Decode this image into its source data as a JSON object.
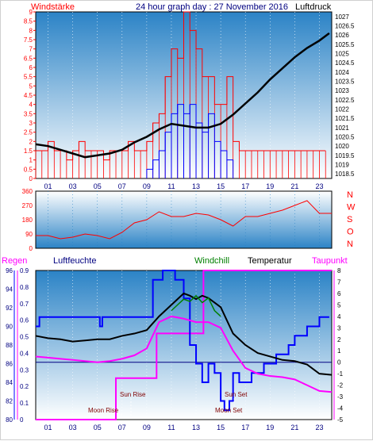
{
  "header": {
    "title": "24 hour graph day : 27 November 2016",
    "left_label": "Windstärke",
    "right_label": "Luftdruck"
  },
  "colors": {
    "red": "#ff0000",
    "black": "#000000",
    "blue": "#0000ff",
    "green": "#008000",
    "magenta": "#ff00ff",
    "dark_red": "#800000",
    "navy": "#000080",
    "bg_top": "#2b83c6",
    "bg_bottom": "#ffffff"
  },
  "x_ticks": [
    "01",
    "03",
    "05",
    "07",
    "09",
    "11",
    "13",
    "15",
    "17",
    "19",
    "21",
    "23"
  ],
  "chart_data": [
    {
      "type": "line",
      "title": "24 hour graph day : 27 November 2016",
      "xlabel": "",
      "ylabel": "Windstärke",
      "y2label": "Luftdruck",
      "x_range_hours": [
        0,
        24
      ],
      "ylim": [
        0,
        9
      ],
      "y2lim": [
        1018.25,
        1027.25
      ],
      "y_ticks": [
        "0",
        "0.5",
        "1",
        "1.5",
        "2",
        "2.5",
        "3",
        "3.5",
        "4",
        "4.5",
        "5",
        "5.5",
        "6",
        "6.5",
        "7",
        "7.5",
        "8",
        "8.5",
        "9"
      ],
      "y2_ticks": [
        "1018.5",
        "1019",
        "1019.5",
        "1020",
        "1020.5",
        "1021",
        "1021.5",
        "1022",
        "1022.5",
        "1023",
        "1023.5",
        "1024",
        "1024.5",
        "1025",
        "1025.5",
        "1026",
        "1026.5",
        "1027"
      ],
      "series": [
        {
          "name": "Luftdruck",
          "axis": "right",
          "color": "#000000",
          "x": [
            0,
            1,
            2,
            3,
            4,
            5,
            6,
            7,
            8,
            9,
            10,
            11,
            12,
            13,
            14,
            15,
            16,
            17,
            18,
            19,
            20,
            21,
            22,
            23,
            23.8
          ],
          "y": [
            1020.1,
            1020.0,
            1019.8,
            1019.6,
            1019.4,
            1019.5,
            1019.6,
            1019.8,
            1020.2,
            1020.5,
            1020.9,
            1021.2,
            1021.1,
            1021.0,
            1021.0,
            1021.2,
            1021.7,
            1022.3,
            1022.9,
            1023.6,
            1024.2,
            1024.8,
            1025.3,
            1025.7,
            1026.1
          ]
        },
        {
          "name": "Windböen",
          "axis": "left",
          "color": "#ff0000",
          "x": [
            0,
            0.5,
            1,
            1.5,
            2,
            2.5,
            3,
            3.5,
            4,
            4.5,
            5,
            5.5,
            6,
            6.5,
            7,
            7.5,
            8,
            8.5,
            9,
            9.5,
            10,
            10.5,
            11,
            11.5,
            12,
            12.5,
            13,
            13.5,
            14,
            14.5,
            15,
            15.5,
            16,
            16.5,
            17,
            17.5,
            18,
            18.5,
            19,
            19.5,
            20,
            20.5,
            21,
            21.5,
            22,
            22.5,
            23,
            23.5
          ],
          "y": [
            1.5,
            1.5,
            2.0,
            1.5,
            1.5,
            1.0,
            1.5,
            2.0,
            1.5,
            1.5,
            1.5,
            1.0,
            1.5,
            1.5,
            1.5,
            2.0,
            1.5,
            1.5,
            2.0,
            3.0,
            3.5,
            5.5,
            7.0,
            6.5,
            9.0,
            8.0,
            7.0,
            5.5,
            5.5,
            4.0,
            4.0,
            5.5,
            2.0,
            1.5,
            1.5,
            1.5,
            1.5,
            1.5,
            1.5,
            1.5,
            1.5,
            1.5,
            1.5,
            1.5,
            1.5,
            1.5,
            1.5,
            1.5
          ]
        },
        {
          "name": "Windmittel",
          "axis": "left",
          "color": "#0000ff",
          "x": [
            9,
            9.5,
            10,
            10.5,
            11,
            11.5,
            12,
            12.5,
            13,
            13.5,
            14,
            14.5,
            15,
            15.5,
            16
          ],
          "y": [
            0.5,
            1.0,
            1.5,
            2.5,
            3.5,
            4.0,
            3.5,
            4.0,
            3.0,
            2.5,
            3.5,
            2.0,
            1.5,
            1.0,
            0.5
          ]
        }
      ]
    },
    {
      "type": "line",
      "ylabel": "Windrichtung",
      "ylim": [
        0,
        360
      ],
      "y_ticks": [
        "0",
        "90",
        "180",
        "270",
        "360"
      ],
      "compass_labels": [
        "N",
        "W",
        "S",
        "O",
        "N"
      ],
      "series": [
        {
          "name": "Windrichtung",
          "color": "#ff0000",
          "x": [
            0,
            1,
            2,
            3,
            4,
            5,
            6,
            7,
            8,
            9,
            10,
            11,
            12,
            13,
            14,
            15,
            16,
            17,
            18,
            19,
            20,
            21,
            22,
            23,
            24
          ],
          "y": [
            80,
            80,
            60,
            70,
            90,
            80,
            60,
            100,
            160,
            180,
            230,
            200,
            200,
            220,
            210,
            180,
            140,
            200,
            200,
            220,
            240,
            270,
            300,
            220,
            220
          ]
        }
      ]
    },
    {
      "type": "line",
      "legend": [
        "Regen",
        "Luftfeuchte",
        "Windchill",
        "Temperatur",
        "Taupunkt"
      ],
      "ylim_left_rain": [
        0,
        0.9
      ],
      "left_rain_ticks": [
        "0",
        "0.1",
        "0.2",
        "0.3",
        "0.4",
        "0.5",
        "0.6",
        "0.7",
        "0.8",
        "0.9"
      ],
      "ylim_left_humidity": [
        80,
        96
      ],
      "left_humidity_ticks": [
        "80",
        "82",
        "84",
        "86",
        "88",
        "90",
        "92",
        "94",
        "96"
      ],
      "ylim_right_temperature": [
        -5,
        8
      ],
      "right_temperature_ticks": [
        "-5",
        "-4",
        "-3",
        "-2",
        "-1",
        "0",
        "1",
        "2",
        "3",
        "4",
        "5",
        "6",
        "7",
        "8"
      ],
      "annotations": [
        "Sun Rise",
        "Sun Set",
        "Moon Rise",
        "Moon Set"
      ],
      "series": [
        {
          "name": "Regen",
          "axis": "rain",
          "color": "#ff00ff",
          "x": [
            0,
            6.5,
            6.5,
            9.8,
            9.8,
            13.6,
            13.6,
            24
          ],
          "y": [
            0,
            0,
            0.25,
            0.25,
            0.52,
            0.52,
            0.9,
            0.9
          ]
        },
        {
          "name": "Luftfeuchte",
          "axis": "humidity",
          "color": "#0000ff",
          "x": [
            0,
            0.3,
            0.3,
            5,
            5.2,
            5.4,
            9.5,
            9.5,
            10.3,
            10.3,
            11.3,
            11.3,
            12,
            12.5,
            13,
            13.5,
            14,
            14.5,
            15,
            15.3,
            15.7,
            16,
            16.5,
            17,
            17.5,
            18,
            18.5,
            19,
            19.5,
            20,
            20.5,
            21,
            21.5,
            22,
            23,
            23.8
          ],
          "y": [
            90,
            90,
            91,
            91,
            90,
            91,
            91,
            95,
            95,
            96,
            96,
            95,
            93,
            88,
            86,
            84,
            86,
            85,
            82,
            81,
            82,
            85,
            84,
            84,
            85,
            85,
            86,
            86,
            87,
            87,
            88,
            89,
            89,
            90,
            91,
            91
          ]
        },
        {
          "name": "Temperatur",
          "axis": "temperature",
          "color": "#000000",
          "x": [
            0,
            1,
            2,
            3,
            4,
            5,
            6,
            7,
            8,
            9,
            10,
            11,
            11.5,
            12,
            12.5,
            13,
            13.5,
            14,
            15,
            16,
            17,
            18,
            19,
            20,
            21,
            22,
            23,
            24
          ],
          "y": [
            2.3,
            2.1,
            2.0,
            1.8,
            1.9,
            2.0,
            2.0,
            2.3,
            2.5,
            2.8,
            4.0,
            5.0,
            5.5,
            6.0,
            5.8,
            5.5,
            5.8,
            5.6,
            4.8,
            2.5,
            1.5,
            0.8,
            0.5,
            0.2,
            0.1,
            -0.2,
            -1.0,
            -1.1
          ]
        },
        {
          "name": "Windchill",
          "axis": "temperature",
          "color": "#008000",
          "x": [
            11,
            11.5,
            12,
            12.5,
            13,
            13.5,
            14,
            14.5,
            15
          ],
          "y": [
            4.5,
            5.0,
            5.5,
            5.3,
            5.8,
            5.2,
            5.6,
            4.5,
            4.0
          ]
        },
        {
          "name": "Taupunkt",
          "axis": "temperature",
          "color": "#ff00ff",
          "x": [
            0,
            1,
            2,
            3,
            4,
            5,
            6,
            7,
            8,
            9,
            10,
            11,
            12,
            13,
            14,
            15,
            16,
            17,
            18,
            19,
            20,
            21,
            22,
            23,
            24
          ],
          "y": [
            0.5,
            0.4,
            0.3,
            0.2,
            0.1,
            0.0,
            0.1,
            0.3,
            0.6,
            1.2,
            3.5,
            4.0,
            3.8,
            3.5,
            3.5,
            3.0,
            1.0,
            -0.5,
            -1.0,
            -1.2,
            -1.3,
            -1.5,
            -2.0,
            -2.5,
            -2.6
          ]
        }
      ]
    }
  ]
}
